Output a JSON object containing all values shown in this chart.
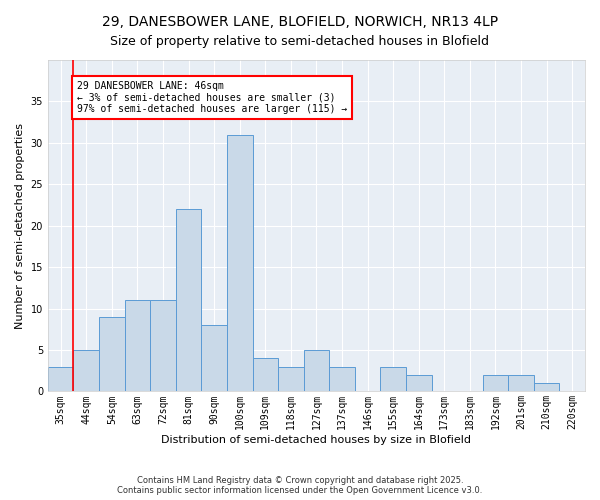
{
  "title1": "29, DANESBOWER LANE, BLOFIELD, NORWICH, NR13 4LP",
  "title2": "Size of property relative to semi-detached houses in Blofield",
  "xlabel": "Distribution of semi-detached houses by size in Blofield",
  "ylabel": "Number of semi-detached properties",
  "categories": [
    "35sqm",
    "44sqm",
    "54sqm",
    "63sqm",
    "72sqm",
    "81sqm",
    "90sqm",
    "100sqm",
    "109sqm",
    "118sqm",
    "127sqm",
    "137sqm",
    "146sqm",
    "155sqm",
    "164sqm",
    "173sqm",
    "183sqm",
    "192sqm",
    "201sqm",
    "210sqm",
    "220sqm"
  ],
  "values": [
    3,
    5,
    9,
    11,
    11,
    22,
    8,
    31,
    4,
    3,
    5,
    3,
    0,
    3,
    2,
    0,
    0,
    2,
    2,
    1,
    0
  ],
  "bar_color": "#c9d9e8",
  "bar_edge_color": "#5b9bd5",
  "property_line_bar_index": 1,
  "annotation_text": "29 DANESBOWER LANE: 46sqm\n← 3% of semi-detached houses are smaller (3)\n97% of semi-detached houses are larger (115) →",
  "annotation_box_color": "white",
  "annotation_box_edge_color": "red",
  "vline_color": "red",
  "ylim": [
    0,
    40
  ],
  "yticks": [
    0,
    5,
    10,
    15,
    20,
    25,
    30,
    35
  ],
  "footer": "Contains HM Land Registry data © Crown copyright and database right 2025.\nContains public sector information licensed under the Open Government Licence v3.0.",
  "bg_color": "#ffffff",
  "plot_bg_color": "#e8eef5",
  "title1_fontsize": 10,
  "title2_fontsize": 9,
  "xlabel_fontsize": 8,
  "ylabel_fontsize": 8,
  "tick_fontsize": 7,
  "annotation_fontsize": 7,
  "footer_fontsize": 6
}
